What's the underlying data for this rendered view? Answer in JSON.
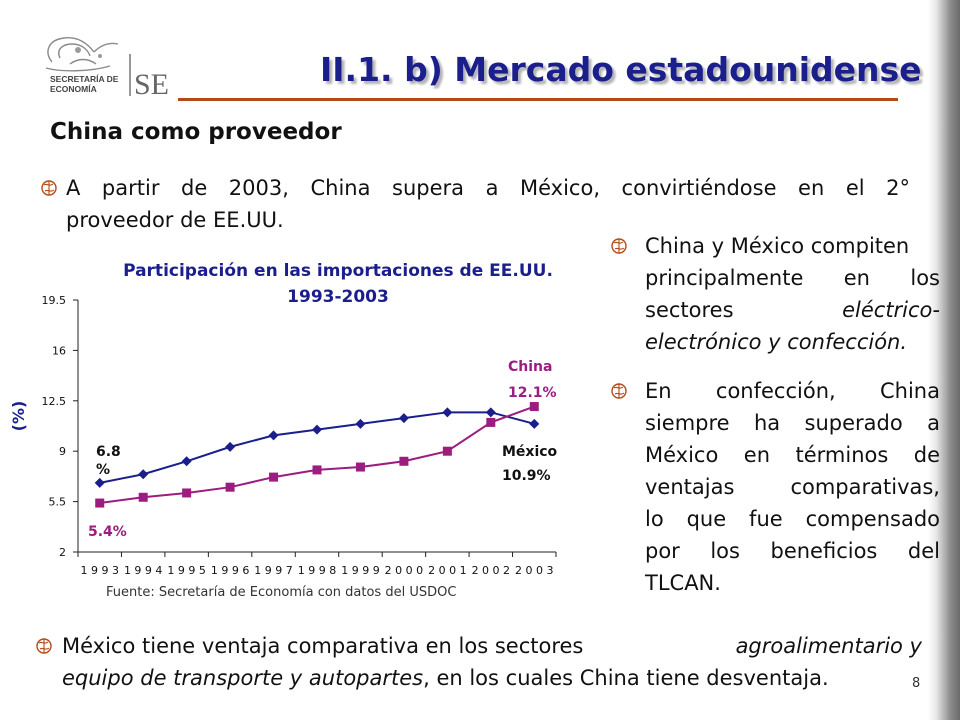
{
  "logo": {
    "line1": "SECRETARÍA DE",
    "line2": "ECONOMÍA",
    "mark": "SE"
  },
  "title": "II.1. b) Mercado estadounidense",
  "subtitle": "China como proveedor",
  "bullets": {
    "b1": {
      "lines": [
        "A partir de 2003, China supera a México, convirtiéndose en el 2°",
        "proveedor de EE.UU."
      ]
    },
    "b2": {
      "l1": "China y México compiten",
      "l2a": "principalmente",
      "l2b": "en",
      "l2c": "los",
      "l3a": "sectores",
      "l3b": "eléctrico-",
      "l4": "electrónico y confección."
    },
    "b3": {
      "lines": [
        "En confección, China",
        "siempre ha superado a",
        "México en términos de",
        "ventajas comparativas,",
        "lo que fue compensado",
        "por los beneficios del",
        "TLCAN."
      ]
    },
    "b4": {
      "l1a": "México tiene ventaja comparativa en los sectores",
      "l1b": "agroalimentario y",
      "l2a": "equipo de transporte y autopartes",
      "l2b": ", en los cuales China tiene desventaja."
    }
  },
  "chart_data": {
    "type": "line",
    "title": "Participación en las importaciones de EE.UU.",
    "subtitle": "1993-2003",
    "ylabel": "(%)",
    "ylim": [
      2,
      19.5
    ],
    "yticks": [
      "19.5",
      "16",
      "12.5",
      "9",
      "5.5",
      "2"
    ],
    "yticks_values": [
      19.5,
      16,
      12.5,
      9,
      5.5,
      2
    ],
    "categories": [
      "1993",
      "1994",
      "1995",
      "1996",
      "1997",
      "1998",
      "1999",
      "2000",
      "2001",
      "2002",
      "2003"
    ],
    "category_labels": [
      "1 9 9 3",
      "1 9 9 4",
      "1 9 9 5",
      "1 9 9 6",
      "1 9 9 7",
      "1 9 9 8",
      "1 9 9 9",
      "2 0 0 0",
      "2 0 0 1",
      "2 0 0 2",
      "2 0 0 3"
    ],
    "series": [
      {
        "name": "México",
        "color": "#1a1f8c",
        "values": [
          6.8,
          7.4,
          8.3,
          9.3,
          10.1,
          10.5,
          10.9,
          11.3,
          11.7,
          11.7,
          10.9
        ]
      },
      {
        "name": "China",
        "color": "#9c1c80",
        "values": [
          5.4,
          5.8,
          6.1,
          6.5,
          7.2,
          7.7,
          7.9,
          8.3,
          9.0,
          11.0,
          12.1
        ]
      }
    ],
    "annotations": {
      "mexico_start_l1": "6.8",
      "mexico_start_l2": "%",
      "china_start": "5.4%",
      "china_name": "China",
      "china_end": "12.1%",
      "mexico_name": "México",
      "mexico_end": "10.9%"
    },
    "grid": false
  },
  "source": "Fuente: Secretaría de Economía con datos del USDOC",
  "page_number": "8",
  "colors": {
    "title": "#1a1f8c",
    "rule": "#b24a19",
    "mexico": "#1a1f8c",
    "china": "#9c1c80",
    "bullet_icon": "#b24a19"
  },
  "icons": {
    "bullet": "globe-bullet-icon"
  }
}
